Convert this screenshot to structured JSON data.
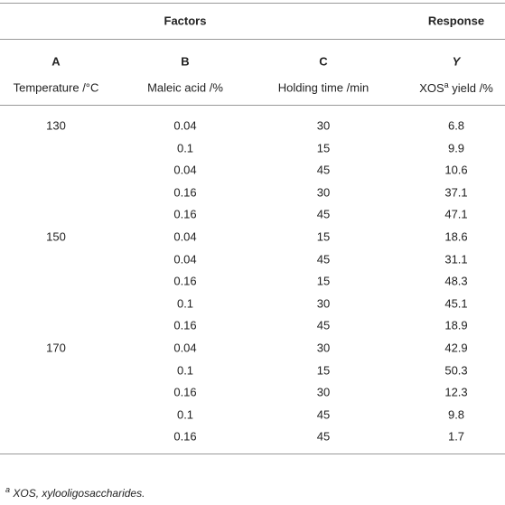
{
  "header": {
    "factors": "Factors",
    "response": "Response",
    "codes": [
      "A",
      "B",
      "C",
      "Y"
    ],
    "units": [
      "Temperature /°C",
      "Maleic acid /%",
      "Holding time /min"
    ],
    "response_unit": {
      "main": "XOS",
      "sup": "a",
      "rest": " yield /%"
    }
  },
  "groups": [
    {
      "temperature": 130,
      "rows": [
        [
          0.04,
          30,
          6.8
        ],
        [
          0.1,
          15,
          9.9
        ],
        [
          0.04,
          45,
          10.6
        ],
        [
          0.16,
          30,
          37.1
        ],
        [
          0.16,
          45,
          47.1
        ]
      ]
    },
    {
      "temperature": 150,
      "rows": [
        [
          0.04,
          15,
          18.6
        ],
        [
          0.04,
          45,
          31.1
        ],
        [
          0.16,
          15,
          48.3
        ],
        [
          0.1,
          30,
          45.1
        ],
        [
          0.16,
          45,
          18.9
        ]
      ]
    },
    {
      "temperature": 170,
      "rows": [
        [
          0.04,
          30,
          42.9
        ],
        [
          0.1,
          15,
          50.3
        ],
        [
          0.16,
          30,
          12.3
        ],
        [
          0.1,
          45,
          9.8
        ],
        [
          0.16,
          45,
          1.7
        ]
      ]
    }
  ],
  "footnote": {
    "mark": "a",
    "text": "XOS, xylooligosaccharides."
  }
}
